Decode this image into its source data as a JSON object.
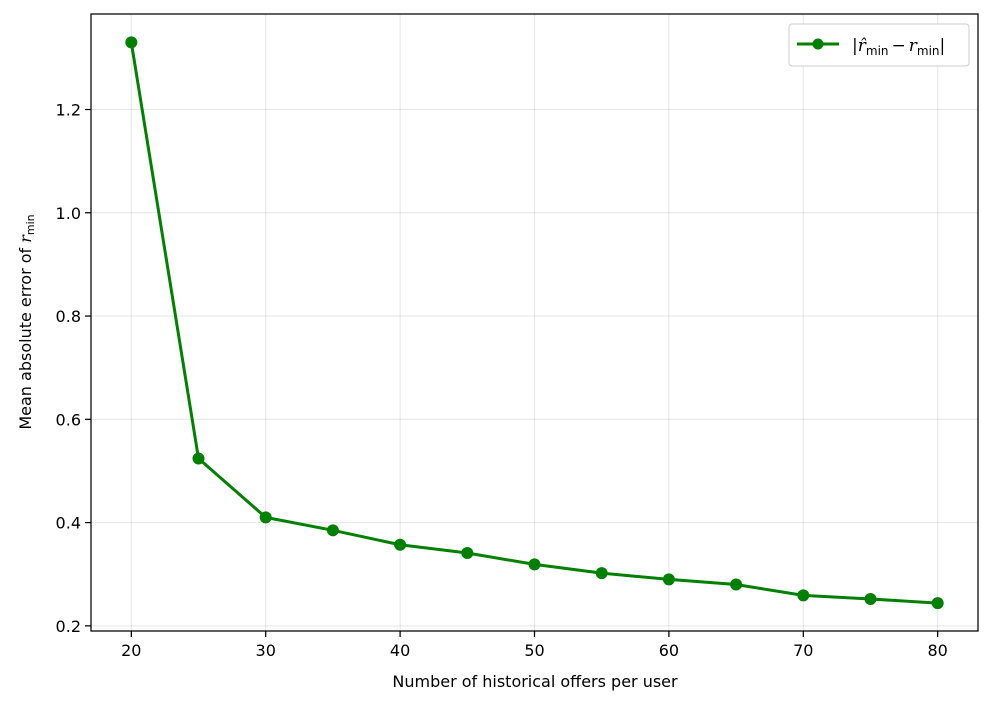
{
  "chart_data": {
    "type": "line",
    "x": [
      20,
      25,
      30,
      35,
      40,
      45,
      50,
      55,
      60,
      65,
      70,
      75,
      80
    ],
    "series": [
      {
        "name": "|r̂min − rmin|",
        "color": "#008000",
        "values": [
          1.33,
          0.524,
          0.41,
          0.385,
          0.357,
          0.341,
          0.319,
          0.302,
          0.29,
          0.28,
          0.259,
          0.252,
          0.244
        ]
      }
    ],
    "title": "",
    "xlabel": "Number of historical offers per user",
    "ylabel": {
      "main": "Mean absolute error of ",
      "var": "r",
      "sub": "min"
    },
    "xlim": [
      17,
      83
    ],
    "ylim": [
      0.19,
      1.385
    ],
    "xticks": [
      "20",
      "30",
      "40",
      "50",
      "60",
      "70",
      "80"
    ],
    "yticks": [
      "0.2",
      "0.4",
      "0.6",
      "0.8",
      "1.0",
      "1.2"
    ],
    "grid": true,
    "legend": {
      "placement": "top-right",
      "label": {
        "open": "|",
        "var1": "r̂",
        "sub1": "min",
        "minus": "−",
        "var2": "r",
        "sub2": "min",
        "close": "|"
      }
    }
  }
}
